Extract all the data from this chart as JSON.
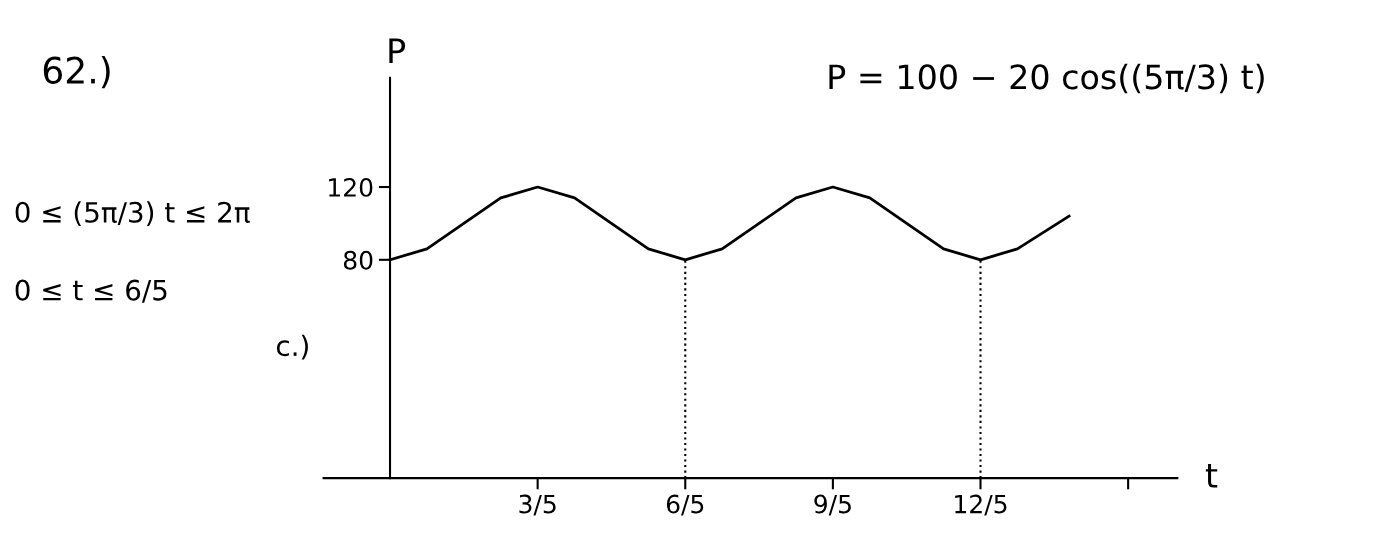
{
  "chart_data": {
    "type": "line",
    "xlabel": "t",
    "ylabel": "P",
    "annotations": [
      "62.)",
      "P = 100 − 20 cos((5π/3) t)",
      "0 ≤ (5π/3) t ≤ 2π",
      "0 ≤ t ≤ 6/5",
      "c.)"
    ],
    "x": [
      0,
      0.15,
      0.3,
      0.45,
      0.6,
      0.75,
      0.9,
      1.05,
      1.2,
      1.35,
      1.5,
      1.65,
      1.8,
      1.95,
      2.1,
      2.25,
      2.4,
      2.55,
      2.76
    ],
    "series": [
      {
        "color": "#000000",
        "values": [
          80,
          86,
          100,
          114,
          120,
          114,
          100,
          86,
          80,
          86,
          100,
          114,
          120,
          114,
          100,
          86,
          80,
          86,
          104
        ]
      }
    ],
    "xlim": [
      -0.27,
      3.2
    ],
    "ylim": [
      -40,
      180
    ],
    "xticks": [
      {
        "value": 0.6,
        "label": "3/5"
      },
      {
        "value": 1.2,
        "label": "6/5"
      },
      {
        "value": 1.8,
        "label": "9/5"
      },
      {
        "value": 2.4,
        "label": "12/5"
      },
      {
        "value": 3.0,
        "label": null
      }
    ],
    "yticks": [
      80,
      120
    ],
    "ref_lines": [
      {
        "axis": "x",
        "value": 1.2,
        "line_style": "dotted"
      },
      {
        "axis": "x",
        "value": 2.4,
        "line_style": "dotted"
      }
    ],
    "line_style": "solid",
    "grid": false
  }
}
